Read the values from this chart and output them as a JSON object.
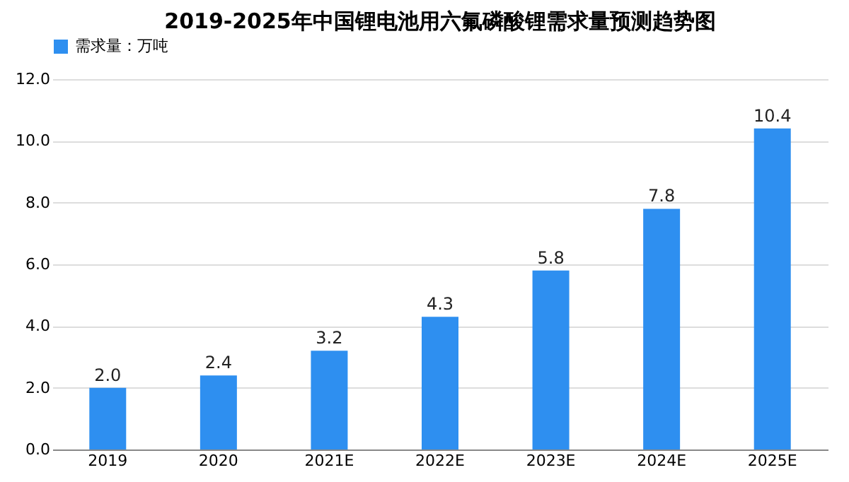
{
  "chart_data": {
    "type": "bar",
    "title": "2019-2025年中国锂电池用六氟磷酸锂需求量预测趋势图",
    "categories": [
      "2019",
      "2020",
      "2021E",
      "2022E",
      "2023E",
      "2024E",
      "2025E"
    ],
    "series": [
      {
        "name": "需求量：万吨",
        "color": "#2e8ff0",
        "values": [
          2.0,
          2.4,
          3.2,
          4.3,
          5.8,
          7.8,
          10.4
        ],
        "value_labels": [
          "2.0",
          "2.4",
          "3.2",
          "4.3",
          "5.8",
          "7.8",
          "10.4"
        ]
      }
    ],
    "ylim": [
      0,
      12
    ],
    "yticks": [
      {
        "value": 0,
        "label": "0.0"
      },
      {
        "value": 2,
        "label": "2.0"
      },
      {
        "value": 4,
        "label": "4.0"
      },
      {
        "value": 6,
        "label": "6.0"
      },
      {
        "value": 8,
        "label": "8.0"
      },
      {
        "value": 10,
        "label": "10.0"
      },
      {
        "value": 12,
        "label": "12.0"
      }
    ],
    "grid": "y",
    "legend": "top"
  }
}
